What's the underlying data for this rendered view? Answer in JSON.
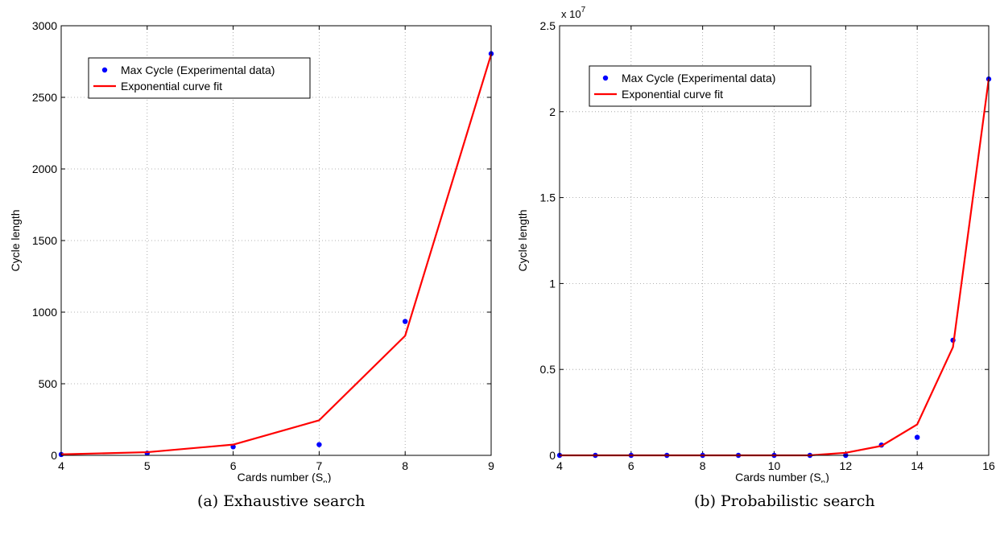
{
  "chart_data": [
    {
      "type": "line",
      "caption": "(a) Exhaustive search",
      "xlabel": "Cards number (S",
      "xlabel_sub": "n",
      "xlabel_end": ")",
      "ylabel": "Cycle length",
      "exponent_label": "",
      "xlim": [
        4,
        9
      ],
      "ylim": [
        0,
        3000
      ],
      "xticks": [
        4,
        5,
        6,
        7,
        8,
        9
      ],
      "yticks": [
        0,
        500,
        1000,
        1500,
        2000,
        2500,
        3000
      ],
      "ytick_labels": [
        "0",
        "500",
        "1000",
        "1500",
        "2000",
        "2500",
        "3000"
      ],
      "grid": true,
      "legend_position": "top-left",
      "series": [
        {
          "name": "Max Cycle (Experimental data)",
          "kind": "scatter",
          "color": "#0000ff",
          "x": [
            4,
            5,
            6,
            7,
            8,
            9
          ],
          "y": [
            6,
            15,
            60,
            75,
            935,
            2805
          ]
        },
        {
          "name": "Exponential curve fit",
          "kind": "line",
          "color": "#ff0000",
          "x": [
            4,
            5,
            6,
            7,
            8,
            9
          ],
          "y": [
            7,
            22,
            75,
            245,
            835,
            2800
          ]
        }
      ]
    },
    {
      "type": "line",
      "caption": "(b) Probabilistic search",
      "xlabel": "Cards number (S",
      "xlabel_sub": "n",
      "xlabel_end": ")",
      "ylabel": "Cycle length",
      "exponent_label": "x 10",
      "exponent_power": "7",
      "xlim": [
        4,
        16
      ],
      "ylim": [
        0,
        2.5
      ],
      "xticks": [
        4,
        6,
        8,
        10,
        12,
        14,
        16
      ],
      "yticks": [
        0,
        0.5,
        1,
        1.5,
        2,
        2.5
      ],
      "ytick_labels": [
        "0",
        "0.5",
        "1",
        "1.5",
        "2",
        "2.5"
      ],
      "grid": true,
      "legend_position": "top-left",
      "series": [
        {
          "name": "Max Cycle (Experimental data)",
          "kind": "scatter",
          "color": "#0000ff",
          "x": [
            4,
            5,
            6,
            7,
            8,
            9,
            10,
            11,
            12,
            13,
            14,
            15,
            16
          ],
          "y": [
            0,
            0,
            0,
            0,
            0,
            0,
            0,
            0,
            0,
            0.06,
            0.105,
            0.67,
            2.19
          ]
        },
        {
          "name": "Exponential curve fit",
          "kind": "line",
          "color": "#ff0000",
          "x": [
            4,
            5,
            6,
            7,
            8,
            9,
            10,
            11,
            12,
            13,
            14,
            15,
            16
          ],
          "y": [
            0,
            0,
            0,
            0,
            0,
            0,
            0,
            0,
            0.015,
            0.055,
            0.18,
            0.63,
            2.19
          ]
        }
      ]
    }
  ]
}
